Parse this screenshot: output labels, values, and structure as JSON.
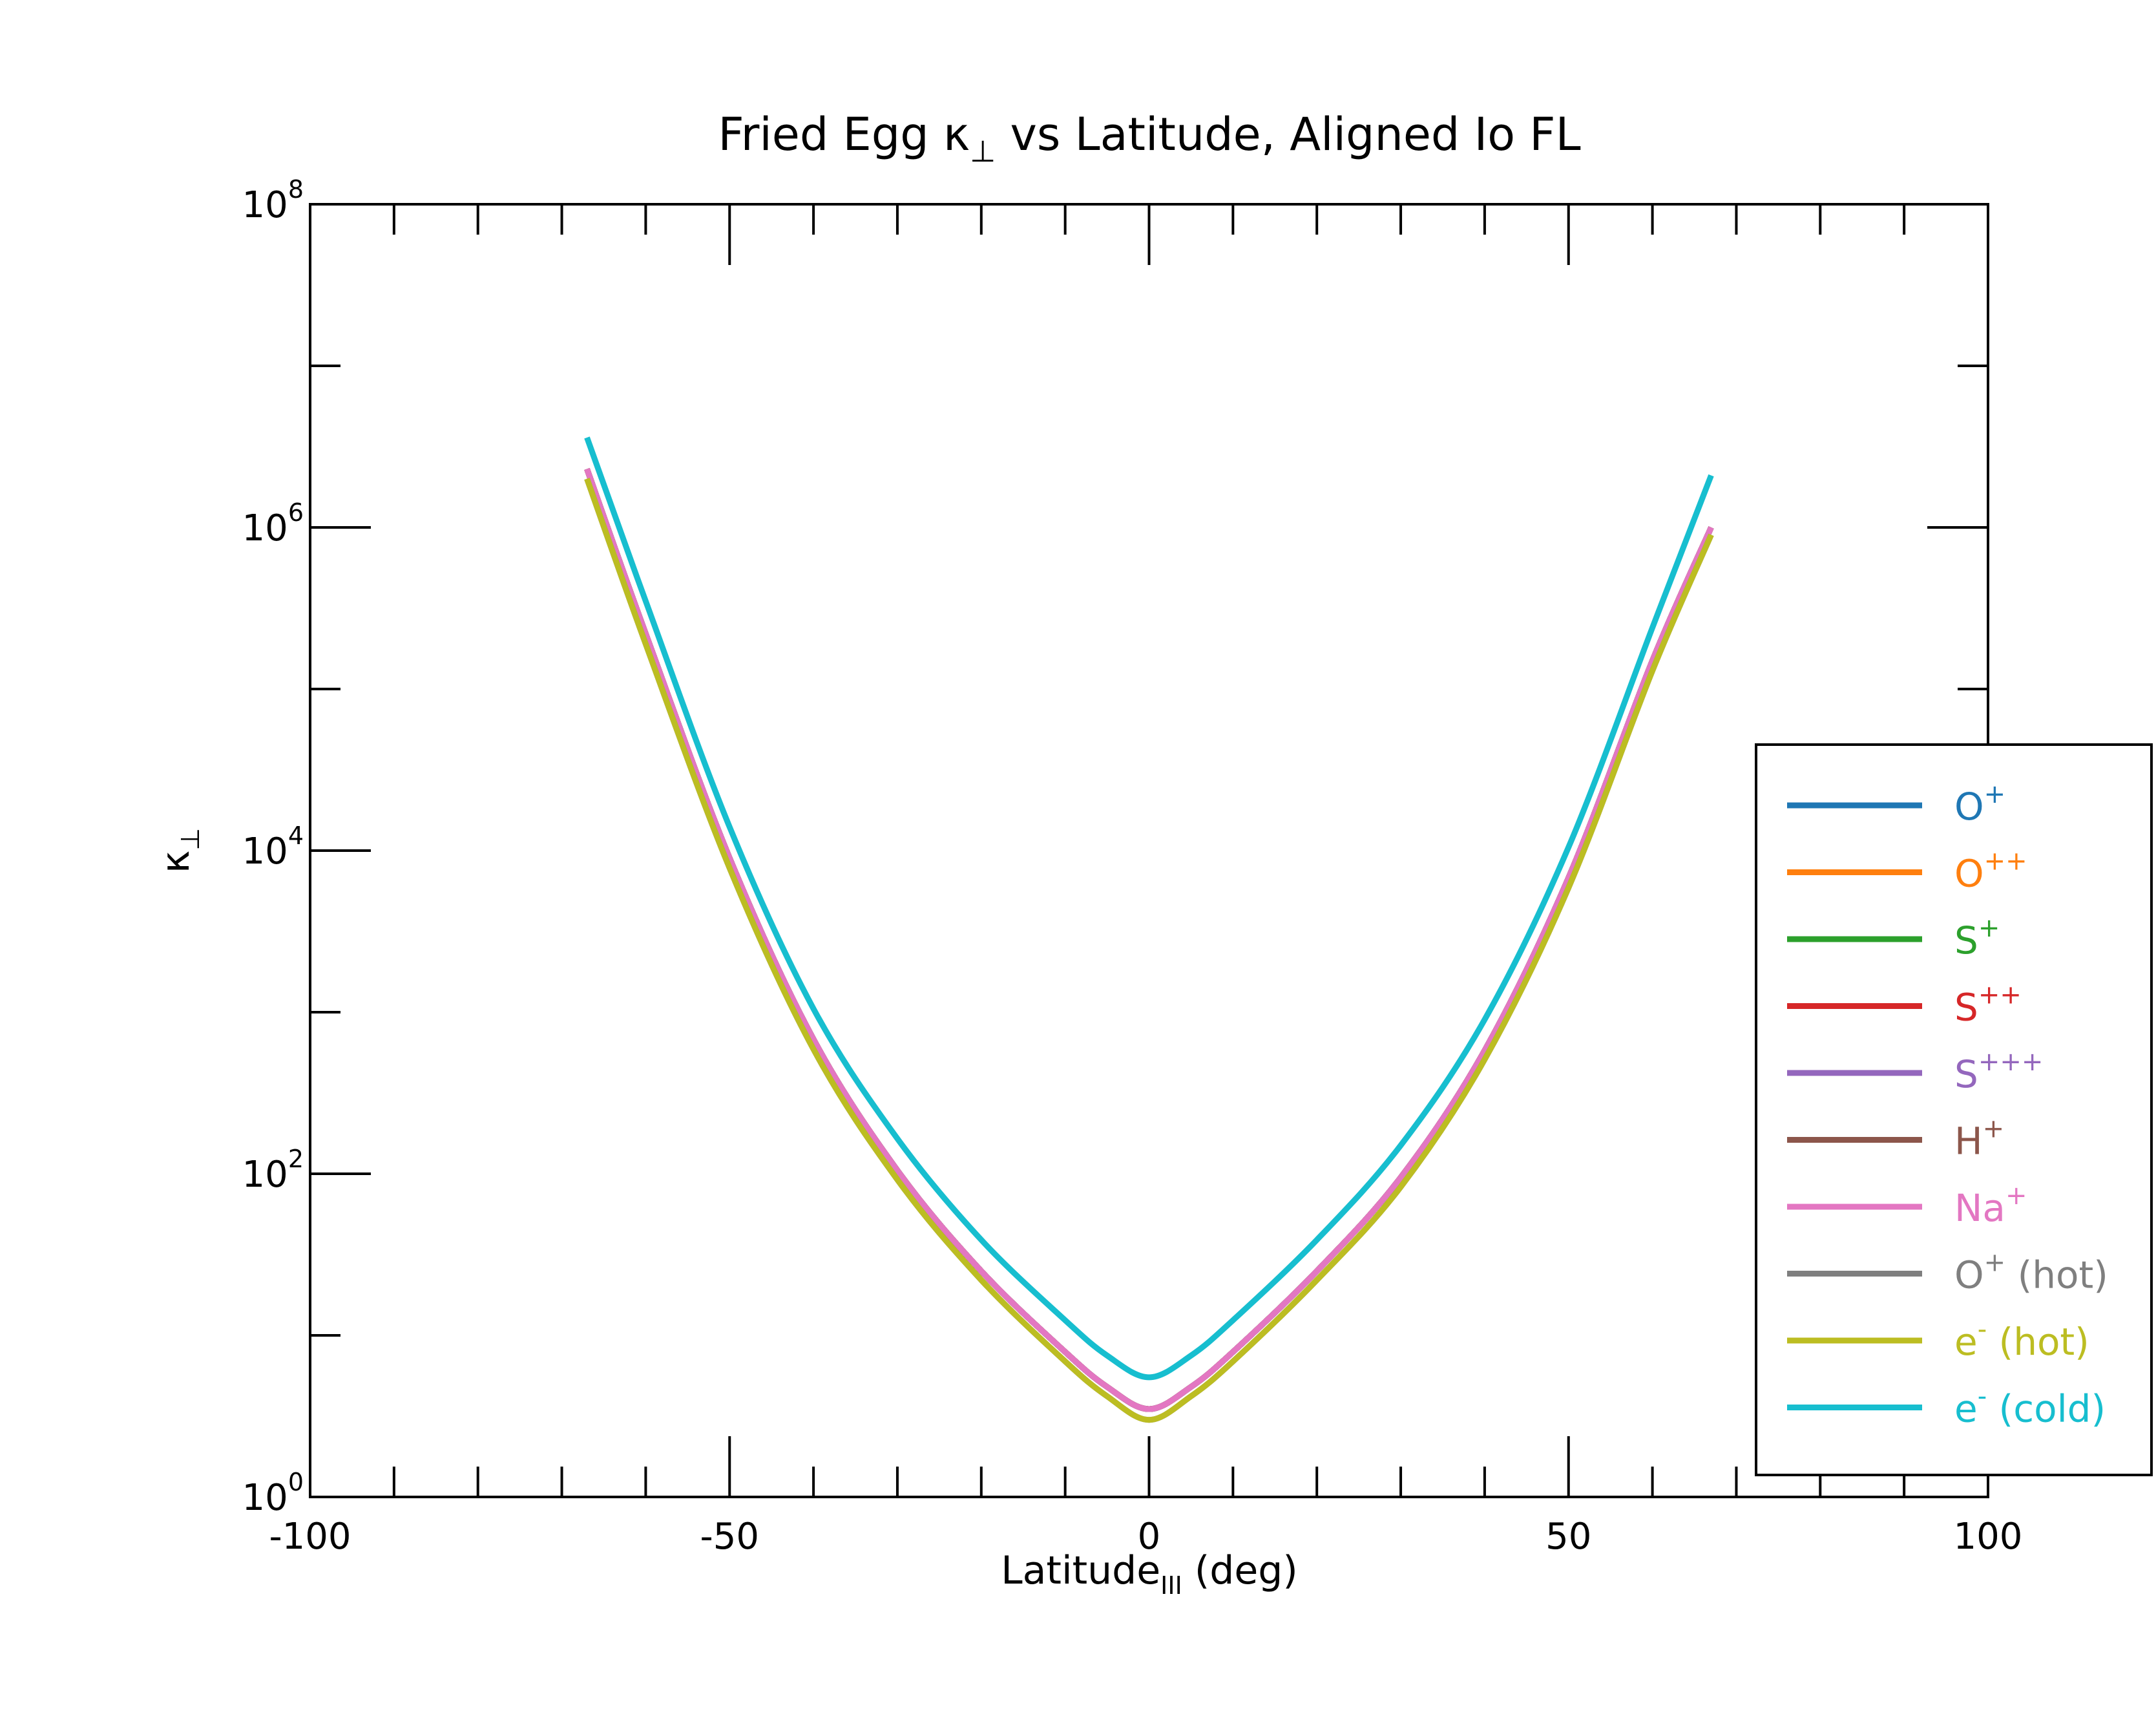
{
  "chart_data": {
    "type": "line",
    "title": {
      "main": "Fried Egg κ",
      "sub": "⊥",
      "rest": " vs Latitude, Aligned Io FL"
    },
    "xlabel": {
      "main": "Latitude",
      "sub": "III",
      "rest": " (deg)"
    },
    "ylabel": {
      "main": "κ",
      "sub": "⊥"
    },
    "xlim": [
      -100,
      100
    ],
    "ylim": [
      1,
      100000000
    ],
    "yscale": "log",
    "grid": false,
    "legend_position": "right",
    "x_ticks": [
      {
        "value": -100,
        "label": "-100"
      },
      {
        "value": -50,
        "label": "-50"
      },
      {
        "value": 0,
        "label": "0"
      },
      {
        "value": 50,
        "label": "50"
      },
      {
        "value": 100,
        "label": "100"
      }
    ],
    "y_ticks": [
      {
        "value": 1,
        "base": "10",
        "exp": "0"
      },
      {
        "value": 100,
        "base": "10",
        "exp": "2"
      },
      {
        "value": 10000,
        "base": "10",
        "exp": "4"
      },
      {
        "value": 1000000,
        "base": "10",
        "exp": "6"
      },
      {
        "value": 100000000,
        "base": "10",
        "exp": "8"
      }
    ],
    "x": [
      -67,
      -60,
      -50,
      -40,
      -30,
      -20,
      -10,
      -5,
      0,
      5,
      10,
      20,
      30,
      40,
      50,
      60,
      67
    ],
    "series": [
      {
        "name": "O",
        "sup": "+",
        "suffix": "",
        "color": "#1f77b4",
        "values": [
          2300000,
          220000,
          9000,
          680,
          105,
          25,
          7.9,
          4.8,
          3.5,
          4.8,
          7.9,
          25,
          95,
          580,
          6800,
          150000,
          1000000
        ]
      },
      {
        "name": "O",
        "sup": "++",
        "suffix": "",
        "color": "#ff7f0e",
        "values": [
          2300000,
          220000,
          9000,
          680,
          105,
          25,
          7.9,
          4.8,
          3.5,
          4.8,
          7.9,
          25,
          95,
          580,
          6800,
          150000,
          1000000
        ]
      },
      {
        "name": "S",
        "sup": "+",
        "suffix": "",
        "color": "#2ca02c",
        "values": [
          2300000,
          220000,
          9000,
          680,
          105,
          25,
          7.9,
          4.8,
          3.5,
          4.8,
          7.9,
          25,
          95,
          580,
          6800,
          150000,
          1000000
        ]
      },
      {
        "name": "S",
        "sup": "++",
        "suffix": "",
        "color": "#d62728",
        "values": [
          2300000,
          220000,
          9000,
          680,
          105,
          25,
          7.9,
          4.8,
          3.5,
          4.8,
          7.9,
          25,
          95,
          580,
          6800,
          150000,
          1000000
        ]
      },
      {
        "name": "S",
        "sup": "+++",
        "suffix": "",
        "color": "#9467bd",
        "values": [
          2300000,
          220000,
          9000,
          680,
          105,
          25,
          7.9,
          4.8,
          3.5,
          4.8,
          7.9,
          25,
          95,
          580,
          6800,
          150000,
          1000000
        ]
      },
      {
        "name": "H",
        "sup": "+",
        "suffix": "",
        "color": "#8c564b",
        "values": [
          2300000,
          220000,
          9000,
          680,
          105,
          25,
          7.9,
          4.8,
          3.5,
          4.8,
          7.9,
          25,
          95,
          580,
          6800,
          150000,
          1000000
        ]
      },
      {
        "name": "Na",
        "sup": "+",
        "suffix": "",
        "color": "#e377c2",
        "values": [
          2300000,
          220000,
          9000,
          680,
          105,
          25,
          7.9,
          4.8,
          3.5,
          4.8,
          7.9,
          25,
          95,
          580,
          6800,
          150000,
          1000000
        ]
      },
      {
        "name": "O",
        "sup": "+",
        "suffix": " (hot)",
        "color": "#7f7f7f",
        "values": [
          2000000,
          190000,
          7800,
          590,
          92,
          22,
          6.9,
          4.2,
          3.0,
          4.2,
          6.9,
          22,
          83,
          510,
          5900,
          130000,
          900000
        ]
      },
      {
        "name": "e",
        "sup": "-",
        "suffix": " (hot)",
        "color": "#bcbd22",
        "values": [
          2000000,
          190000,
          7800,
          590,
          92,
          22,
          6.9,
          4.2,
          3.0,
          4.2,
          6.9,
          22,
          83,
          510,
          5900,
          130000,
          900000
        ]
      },
      {
        "name": "e",
        "sup": "-",
        "suffix": " (cold)",
        "color": "#17becf",
        "values": [
          3600000,
          350000,
          14000,
          1050,
          165,
          39,
          12.4,
          7.5,
          5.5,
          7.5,
          12.4,
          39,
          150,
          900,
          10500,
          240000,
          2100000
        ]
      }
    ]
  }
}
